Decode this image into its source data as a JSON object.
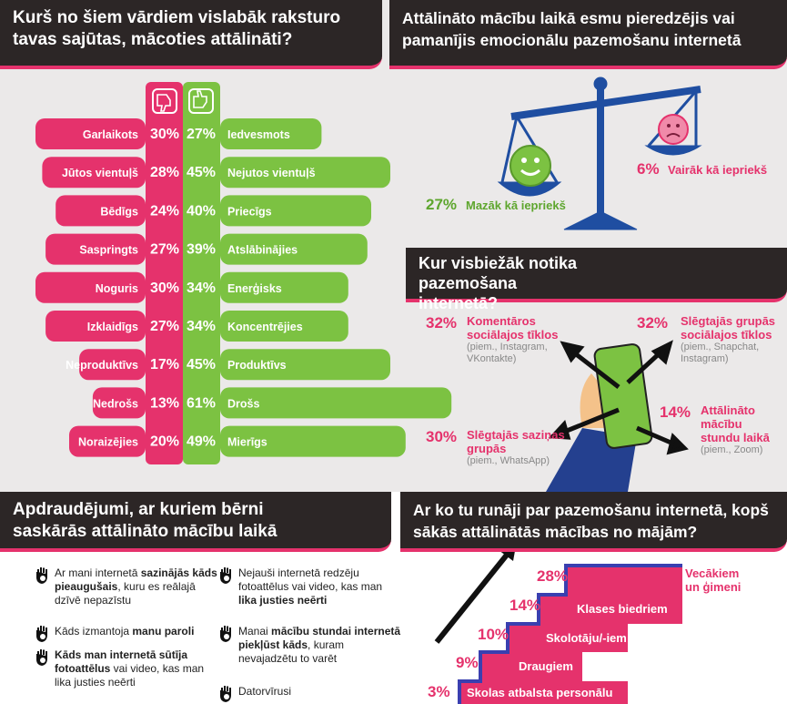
{
  "feelings": {
    "title": "Kurš no šiem vārdiem vislabāk raksturo tavas sajūtas, mācoties attālināti?",
    "rows": [
      {
        "negative": {
          "label": "Garlaikots",
          "value": 30,
          "value_label": "30%"
        },
        "positive": {
          "label": "Iedvesmots",
          "value": 27,
          "value_label": "27%"
        }
      },
      {
        "negative": {
          "label": "Jūtos vientuļš",
          "value": 28,
          "value_label": "28%"
        },
        "positive": {
          "label": "Nejutos vientuļš",
          "value": 45,
          "value_label": "45%"
        }
      },
      {
        "negative": {
          "label": "Bēdīgs",
          "value": 24,
          "value_label": "24%"
        },
        "positive": {
          "label": "Priecīgs",
          "value": 40,
          "value_label": "40%"
        }
      },
      {
        "negative": {
          "label": "Saspringts",
          "value": 27,
          "value_label": "27%"
        },
        "positive": {
          "label": "Atslābinājies",
          "value": 39,
          "value_label": "39%"
        }
      },
      {
        "negative": {
          "label": "Noguris",
          "value": 30,
          "value_label": "30%"
        },
        "positive": {
          "label": "Enerģisks",
          "value": 34,
          "value_label": "34%"
        }
      },
      {
        "negative": {
          "label": "Izklaidīgs",
          "value": 27,
          "value_label": "27%"
        },
        "positive": {
          "label": "Koncentrējies",
          "value": 34,
          "value_label": "34%"
        }
      },
      {
        "negative": {
          "label": "Neproduktīvs",
          "value": 17,
          "value_label": "17%"
        },
        "positive": {
          "label": "Produktīvs",
          "value": 45,
          "value_label": "45%"
        }
      },
      {
        "negative": {
          "label": "Nedrošs",
          "value": 13,
          "value_label": "13%"
        },
        "positive": {
          "label": "Drošs",
          "value": 61,
          "value_label": "61%"
        }
      },
      {
        "negative": {
          "label": "Noraizējies",
          "value": 20,
          "value_label": "20%"
        },
        "positive": {
          "label": "Mierīgs",
          "value": 49,
          "value_label": "49%"
        }
      }
    ]
  },
  "emotional_humiliation": {
    "title": "Attālināto mācību laikā esmu pieredzējis vai pamanījis emocionālu pazemošanu internetā",
    "items": [
      {
        "percent": "27%",
        "label": "Mazāk kā iepriekš"
      },
      {
        "percent": "6%",
        "label": "Vairāk kā iepriekš"
      }
    ]
  },
  "locations": {
    "title": "Kur visbiežāk notika pazemošana internetā?",
    "items": [
      {
        "percent": "32%",
        "label": "Komentāros sociālajos tīklos",
        "example": "(piem., Instagram, VKontakte)"
      },
      {
        "percent": "32%",
        "label": "Slēgtajās grupās sociālajos tīklos",
        "example": "(piem., Snapchat, Instagram)"
      },
      {
        "percent": "14%",
        "label": "Attālināto mācību stundu laikā",
        "example": "(piem., Zoom)"
      },
      {
        "percent": "30%",
        "label": "Slēgtajās saziņas grupās",
        "example": "(piem., WhatsApp)"
      }
    ]
  },
  "threats": {
    "title": "Apdraudējumi, ar kuriem bērni saskārās attālināto mācību laikā",
    "items": [
      [
        {
          "text": "Ar mani internetā ",
          "bold": false
        },
        {
          "text": "sazinājās kāds pieaugušais",
          "bold": true
        },
        {
          "text": ", kuru es reālajā dzīvē nepazīstu",
          "bold": false
        }
      ],
      [
        {
          "text": "Kāds izmantoja ",
          "bold": false
        },
        {
          "text": "manu paroli",
          "bold": true
        }
      ],
      [
        {
          "text": "Kāds man internetā sūtīja fotoattēlus",
          "bold": true
        },
        {
          "text": " vai video, kas man lika justies neērti",
          "bold": false
        }
      ],
      [
        {
          "text": "Nejauši internetā redzēju fotoattēlus vai video, kas man ",
          "bold": false
        },
        {
          "text": "lika justies neērti",
          "bold": true
        }
      ],
      [
        {
          "text": "Manai ",
          "bold": false
        },
        {
          "text": "mācību stundai internetā piekļūst kāds",
          "bold": true
        },
        {
          "text": ", kuram nevajadzētu to varēt",
          "bold": false
        }
      ],
      [
        {
          "text": "Datorvīrusi",
          "bold": false
        }
      ]
    ]
  },
  "talked_to": {
    "title": "Ar ko tu runāji par pazemošanu internetā, kopš sākās attālinātās mācības no mājām?",
    "items": [
      {
        "percent": "3%",
        "label": "Skolas atbalsta personālu"
      },
      {
        "percent": "9%",
        "label": "Draugiem"
      },
      {
        "percent": "10%",
        "label": "Skolotāju/-iem"
      },
      {
        "percent": "14%",
        "label": "Klases biedriem"
      },
      {
        "percent": "28%",
        "label": "Vecākiem un ģimeni"
      }
    ]
  }
}
